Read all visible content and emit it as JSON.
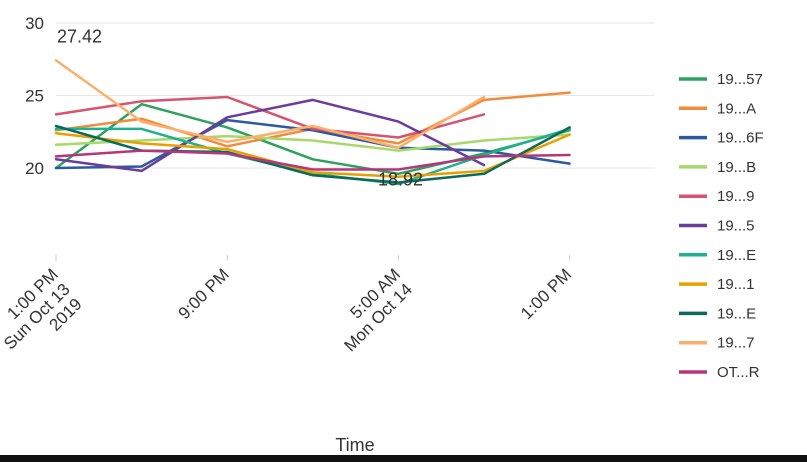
{
  "chart_data": {
    "type": "line",
    "xlabel": "Time",
    "ylabel": "",
    "ylim": [
      14,
      30
    ],
    "xlim": [
      0,
      28
    ],
    "y_ticks": [
      20,
      25,
      30
    ],
    "x_ticks": [
      {
        "x": 0,
        "lines": [
          "1:00 PM",
          "Sun Oct 13",
          "2019"
        ]
      },
      {
        "x": 8,
        "lines": [
          "9:00 PM"
        ]
      },
      {
        "x": 16,
        "lines": [
          "5:00 AM",
          "Mon Oct 14"
        ]
      },
      {
        "x": 24,
        "lines": [
          "1:00 PM"
        ]
      }
    ],
    "grid": "horizontal",
    "legend_position": "right",
    "annotations": [
      {
        "text": "27.42",
        "x": 0,
        "y": 27.42
      },
      {
        "text": "18.92",
        "x": 15,
        "y": 18.92
      }
    ],
    "series": [
      {
        "name": "19...57",
        "color": "#2ca25f",
        "x": [
          0,
          4,
          8,
          12,
          16,
          20,
          24
        ],
        "values": [
          20.0,
          24.4,
          22.8,
          20.6,
          19.6,
          21.0,
          22.6
        ]
      },
      {
        "name": "19...A",
        "color": "#f08c3c",
        "x": [
          0,
          4,
          8,
          12,
          16,
          20,
          24
        ],
        "values": [
          22.6,
          23.4,
          21.5,
          22.7,
          21.7,
          24.7,
          25.2
        ]
      },
      {
        "name": "19...6F",
        "color": "#2c5aa0",
        "x": [
          0,
          4,
          8,
          12,
          16,
          20,
          24
        ],
        "values": [
          20.0,
          20.1,
          23.3,
          22.6,
          21.4,
          21.2,
          20.3
        ]
      },
      {
        "name": "19...B",
        "color": "#a6d96a",
        "x": [
          0,
          4,
          8,
          12,
          16,
          20,
          24
        ],
        "values": [
          21.6,
          21.9,
          22.2,
          21.9,
          21.2,
          21.9,
          22.3
        ]
      },
      {
        "name": "19...9",
        "color": "#d6546e",
        "x": [
          0,
          4,
          8,
          12,
          16,
          20
        ],
        "values": [
          23.7,
          24.6,
          24.9,
          22.7,
          22.1,
          23.7
        ]
      },
      {
        "name": "19...5",
        "color": "#6a3d9a",
        "x": [
          0,
          4,
          8,
          12,
          16,
          20
        ],
        "values": [
          20.6,
          19.8,
          23.5,
          24.7,
          23.2,
          20.2
        ]
      },
      {
        "name": "19...E",
        "color": "#1fb090",
        "x": [
          0,
          4,
          8,
          12,
          16,
          20,
          24
        ],
        "values": [
          22.7,
          22.7,
          21.0,
          19.6,
          18.9,
          20.9,
          22.7
        ]
      },
      {
        "name": "19...1",
        "color": "#e6a100",
        "x": [
          0,
          4,
          8,
          12,
          16,
          20,
          24
        ],
        "values": [
          22.4,
          21.7,
          21.3,
          19.7,
          19.4,
          19.8,
          22.3
        ]
      },
      {
        "name": "19...E",
        "color": "#0b6b5a",
        "x": [
          0,
          4,
          8,
          12,
          16,
          20,
          24
        ],
        "values": [
          22.9,
          21.2,
          21.1,
          19.5,
          19.0,
          19.6,
          22.8
        ]
      },
      {
        "name": "19...7",
        "color": "#fdae6b",
        "x": [
          0,
          4,
          8,
          12,
          16,
          20
        ],
        "values": [
          27.42,
          23.2,
          21.8,
          22.9,
          21.4,
          24.9
        ]
      },
      {
        "name": "OT...R",
        "color": "#b5367a",
        "x": [
          0,
          4,
          8,
          12,
          16,
          20,
          24
        ],
        "values": [
          20.8,
          21.2,
          21.0,
          19.9,
          19.9,
          20.8,
          20.9
        ]
      }
    ]
  }
}
